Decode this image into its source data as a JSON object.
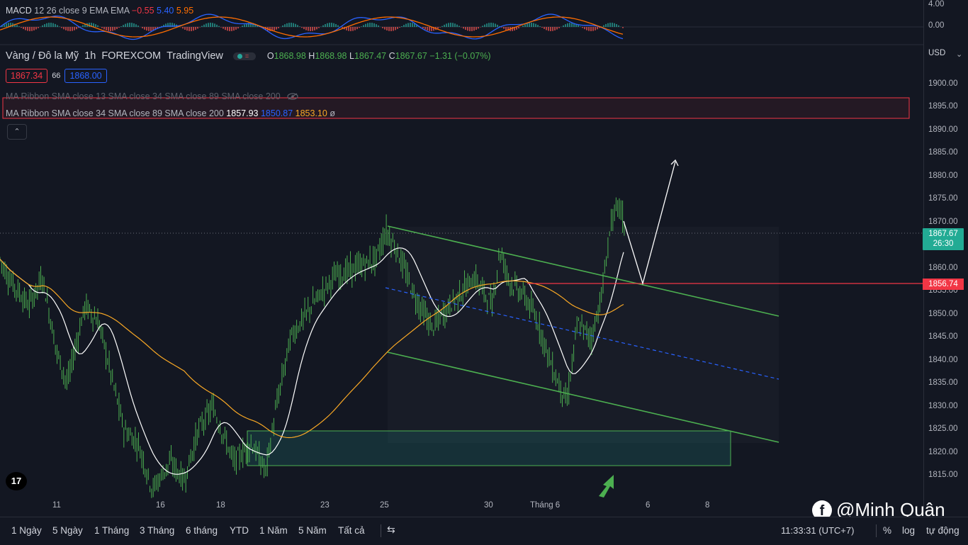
{
  "macd_legend": {
    "name": "MACD",
    "params": "12 26 close 9 EMA EMA",
    "hist": "−0.55",
    "macd": "5.40",
    "signal": "5.95"
  },
  "symbol": {
    "name": "Vàng / Đô la Mỹ",
    "interval": "1h",
    "exchange": "FOREXCOM",
    "source": "TradingView"
  },
  "ohlc": {
    "o_label": "O",
    "o": "1868.98",
    "h_label": "H",
    "h": "1868.98",
    "l_label": "L",
    "l": "1867.47",
    "c_label": "C",
    "c": "1867.67",
    "change": "−1.31 (−0.07%)"
  },
  "trade": {
    "sell": "1867.34",
    "spread": "66",
    "buy": "1868.00"
  },
  "ma_ribbon_1": {
    "text": "MA Ribbon SMA close 13 SMA close 34 SMA close 89 SMA close 200"
  },
  "ma_ribbon_2": {
    "text": "MA Ribbon SMA close 34 SMA close 89 SMA close 200",
    "v1": "1857.93",
    "v2": "1850.87",
    "v3": "1853.10",
    "v4": "ø"
  },
  "collapse_glyph": "⌃",
  "currency": "USD",
  "currency_caret": "⌄",
  "macd_ticks": [
    "4.00",
    "0.00"
  ],
  "price_ticks": [
    "1900.00",
    "1895.00",
    "1890.00",
    "1885.00",
    "1880.00",
    "1875.00",
    "1870.00",
    "1860.00",
    "1855.00",
    "1850.00",
    "1845.00",
    "1840.00",
    "1835.00",
    "1830.00",
    "1825.00",
    "1820.00",
    "1815.00"
  ],
  "last_price": {
    "price": "1867.67",
    "countdown": "26:30"
  },
  "level_label": "1856.74",
  "time_ticks": [
    "11",
    "16",
    "18",
    "23",
    "25",
    "30",
    "Tháng 6",
    "6",
    "8"
  ],
  "ranges": [
    "1 Ngày",
    "5 Ngày",
    "1 Tháng",
    "3 Tháng",
    "6 tháng",
    "YTD",
    "1 Năm",
    "5 Năm",
    "Tất cả"
  ],
  "replay_glyph": "⇆",
  "clock": "11:33:31 (UTC+7)",
  "scale_options": [
    "%",
    "log",
    "tự động"
  ],
  "tv_logo": "17",
  "watermark": {
    "glyph": "f",
    "text": "@Minh Quân"
  },
  "colors": {
    "bg": "#131722",
    "up": "#26a69a",
    "sma13": "#ffffff",
    "sma34": "#2962ff",
    "sma89": "#f9a825",
    "channel": "#4caf50",
    "level": "#f23645",
    "zone": "#1e5c4a"
  }
}
